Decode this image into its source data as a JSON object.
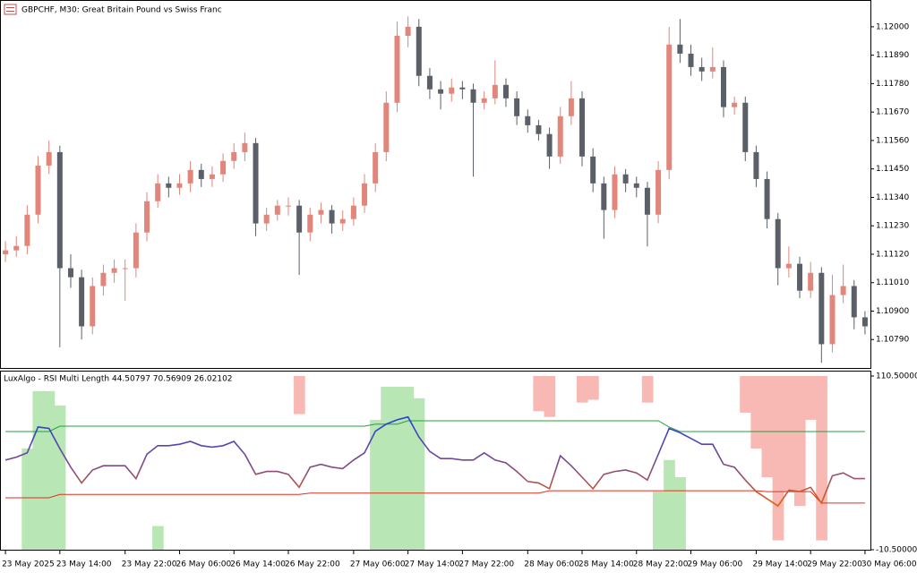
{
  "chart_data": [
    {
      "type": "candlestick",
      "title": "GBPCHF, M30:  Great Britain Pound vs Swiss Franc",
      "categories": [
        "23 May 2025",
        null,
        null,
        null,
        null,
        "23 May 14:00",
        null,
        null,
        null,
        null,
        null,
        "23 May 22:00",
        null,
        null,
        null,
        null,
        "26 May 06:00",
        null,
        null,
        null,
        null,
        "26 May 14:00",
        null,
        null,
        null,
        null,
        "26 May 22:00",
        null,
        null,
        null,
        null,
        null,
        "27 May 06:00",
        null,
        null,
        null,
        null,
        "27 May 14:00",
        null,
        null,
        null,
        null,
        "27 May 22:00",
        null,
        null,
        null,
        null,
        null,
        "28 May 06:00",
        null,
        null,
        null,
        null,
        "28 May 14:00",
        null,
        null,
        null,
        null,
        "28 May 22:00",
        null,
        null,
        null,
        null,
        "29 May 06:00",
        null,
        null,
        null,
        null,
        null,
        "29 May 14:00",
        null,
        null,
        null,
        null,
        "29 May 22:00",
        null,
        null,
        null,
        null,
        "30 May 06:00"
      ],
      "open": [
        1.1112,
        1.11135,
        1.11152,
        1.11273,
        1.11463,
        1.11515,
        1.11066,
        1.11031,
        1.10841,
        1.10997,
        1.11048,
        1.11066,
        1.11066,
        1.11204,
        1.11325,
        1.11394,
        1.11377,
        1.11394,
        1.11446,
        1.11411,
        1.11429,
        1.11481,
        1.11515,
        1.1155,
        1.11239,
        1.11273,
        1.11308,
        1.11308,
        1.11204,
        1.11273,
        1.11291,
        1.11239,
        1.11256,
        1.11308,
        1.11394,
        1.11515,
        1.11706,
        1.11965,
        1.12,
        1.1181,
        1.11758,
        1.11741,
        1.11765,
        1.11758,
        1.11706,
        1.11723,
        1.11775,
        1.11723,
        1.11654,
        1.11619,
        1.11585,
        1.11498,
        1.11654,
        1.11723,
        1.11498,
        1.11394,
        1.11291,
        1.11429,
        1.11394,
        1.11377,
        1.11273,
        1.11446,
        1.11931,
        1.11896,
        1.11844,
        1.11827,
        1.11844,
        1.11689,
        1.11706,
        1.11515,
        1.11411,
        1.11256,
        1.11066,
        1.11083,
        1.10979,
        1.11048,
        1.10772,
        1.10962,
        1.10997,
        1.10876
      ],
      "high": [
        1.1117,
        1.1119,
        1.1131,
        1.115,
        1.1156,
        1.1154,
        1.1112,
        1.1106,
        1.1103,
        1.1108,
        1.111,
        1.111,
        1.1124,
        1.1136,
        1.1143,
        1.1142,
        1.1143,
        1.1148,
        1.1147,
        1.1146,
        1.1151,
        1.1155,
        1.1159,
        1.1157,
        1.113,
        1.1133,
        1.1134,
        1.1133,
        1.113,
        1.1132,
        1.1131,
        1.1129,
        1.1134,
        1.1143,
        1.1155,
        1.1175,
        1.1202,
        1.1204,
        1.1203,
        1.1184,
        1.1179,
        1.118,
        1.1179,
        1.1178,
        1.1175,
        1.1187,
        1.118,
        1.1175,
        1.1168,
        1.1164,
        1.1161,
        1.1169,
        1.1179,
        1.1175,
        1.1153,
        1.1142,
        1.1146,
        1.1145,
        1.1142,
        1.114,
        1.1148,
        1.12,
        1.1203,
        1.1193,
        1.1188,
        1.1192,
        1.1187,
        1.1173,
        1.1173,
        1.1154,
        1.1144,
        1.1128,
        1.1115,
        1.1111,
        1.1109,
        1.1107,
        1.1104,
        1.1108,
        1.1102,
        1.109
      ],
      "low": [
        1.1109,
        1.1111,
        1.1112,
        1.1124,
        1.1143,
        1.1076,
        1.1099,
        1.1079,
        1.1081,
        1.1096,
        1.1101,
        1.1094,
        1.1103,
        1.1117,
        1.113,
        1.1134,
        1.1135,
        1.1136,
        1.1138,
        1.1138,
        1.114,
        1.1145,
        1.1148,
        1.1119,
        1.1121,
        1.1125,
        1.1127,
        1.1104,
        1.1117,
        1.1124,
        1.112,
        1.1121,
        1.1123,
        1.1128,
        1.1136,
        1.1148,
        1.1167,
        1.1192,
        1.1177,
        1.1172,
        1.1168,
        1.1171,
        1.1172,
        1.1142,
        1.1168,
        1.117,
        1.1169,
        1.1162,
        1.1159,
        1.1156,
        1.1145,
        1.1147,
        1.1162,
        1.1146,
        1.1136,
        1.1118,
        1.1126,
        1.1136,
        1.1134,
        1.1115,
        1.1124,
        1.1141,
        1.1186,
        1.1181,
        1.1179,
        1.118,
        1.1165,
        1.1166,
        1.1148,
        1.1138,
        1.1122,
        1.11,
        1.1103,
        1.1095,
        1.1095,
        1.107,
        1.1074,
        1.1093,
        1.1083,
        1.1081
      ],
      "close": [
        1.11135,
        1.11152,
        1.11273,
        1.11463,
        1.11515,
        1.11066,
        1.11031,
        1.10841,
        1.10997,
        1.11048,
        1.11066,
        1.11066,
        1.11204,
        1.11325,
        1.11394,
        1.11377,
        1.11394,
        1.11446,
        1.11411,
        1.11429,
        1.11481,
        1.11515,
        1.1155,
        1.11239,
        1.11273,
        1.11308,
        1.11308,
        1.11204,
        1.11273,
        1.11291,
        1.11239,
        1.11256,
        1.11308,
        1.11394,
        1.11515,
        1.11706,
        1.11965,
        1.12,
        1.1181,
        1.11758,
        1.11741,
        1.11765,
        1.11758,
        1.11706,
        1.11723,
        1.11775,
        1.11723,
        1.11654,
        1.11619,
        1.11585,
        1.11498,
        1.11654,
        1.11723,
        1.11498,
        1.11394,
        1.11291,
        1.11429,
        1.11394,
        1.11377,
        1.11273,
        1.11446,
        1.11931,
        1.11896,
        1.11844,
        1.11827,
        1.11844,
        1.11689,
        1.11706,
        1.11515,
        1.11411,
        1.11256,
        1.11066,
        1.11083,
        1.10979,
        1.11048,
        1.10772,
        1.10962,
        1.10997,
        1.10876,
        1.10841
      ],
      "up_color": "#e2857a",
      "down_color": "#5b6068",
      "ylim": [
        1.1068,
        1.121
      ],
      "yticks": [
        {
          "value": 1.12,
          "label": "1.12000"
        },
        {
          "value": 1.1189,
          "label": "1.11890"
        },
        {
          "value": 1.1178,
          "label": "1.11780"
        },
        {
          "value": 1.1167,
          "label": "1.11670"
        },
        {
          "value": 1.1156,
          "label": "1.11560"
        },
        {
          "value": 1.1145,
          "label": "1.11450"
        },
        {
          "value": 1.1134,
          "label": "1.11340"
        },
        {
          "value": 1.1123,
          "label": "1.11230"
        },
        {
          "value": 1.1112,
          "label": "1.11120"
        },
        {
          "value": 1.1101,
          "label": "1.11010"
        },
        {
          "value": 1.109,
          "label": "1.10900"
        },
        {
          "value": 1.1079,
          "label": "1.10790"
        }
      ]
    },
    {
      "type": "indicator",
      "title": "LuxAlgo - RSI Multi Length 44.50797 70.56909 26.02102",
      "rsi": [
        52,
        54,
        57,
        75,
        74,
        60,
        47,
        36,
        45,
        48,
        48,
        48,
        39,
        56,
        62,
        62,
        63,
        65,
        62,
        61,
        62,
        65,
        56,
        42,
        44,
        44,
        42,
        33,
        47,
        49,
        47,
        46,
        52,
        57,
        72,
        77,
        80,
        82,
        68,
        58,
        53,
        53,
        52,
        52,
        57,
        52,
        50,
        44,
        37,
        36,
        32,
        55,
        48,
        40,
        32,
        42,
        44,
        45,
        43,
        38,
        56,
        74,
        71,
        67,
        63,
        63,
        49,
        47,
        38,
        30,
        25,
        20,
        31,
        30,
        33,
        22,
        41,
        43,
        39,
        39
      ],
      "upper": [
        71.8,
        71.8,
        71.8,
        71.8,
        71.8,
        75.6,
        75.6,
        75.6,
        75.6,
        75.6,
        75.6,
        75.6,
        75.6,
        75.6,
        75.6,
        75.6,
        75.6,
        75.6,
        75.6,
        75.6,
        75.6,
        75.6,
        75.6,
        75.6,
        75.6,
        75.6,
        75.6,
        75.6,
        75.6,
        75.6,
        75.6,
        75.6,
        75.6,
        75.6,
        77,
        77,
        77,
        79.3,
        79.3,
        79.3,
        79.3,
        79.3,
        79.3,
        79.3,
        79.3,
        79.3,
        79.3,
        79.3,
        79.3,
        79.3,
        79.3,
        79.3,
        79.3,
        79.3,
        79.3,
        79.3,
        79.3,
        79.3,
        79.3,
        79.3,
        79.3,
        75,
        71.8,
        71.8,
        71.8,
        71.8,
        71.8,
        71.8,
        71.8,
        71.8,
        71.8,
        71.8,
        71.8,
        71.8,
        71.8,
        71.8,
        71.8,
        71.8,
        71.8,
        71.8
      ],
      "lower": [
        25.7,
        25.7,
        25.7,
        25.7,
        25.7,
        28,
        28,
        28,
        28,
        28,
        28,
        28,
        28,
        28,
        28,
        28,
        28,
        28,
        28,
        28,
        28,
        28,
        28,
        28,
        28,
        28,
        28,
        28,
        29,
        29,
        29,
        29,
        29,
        29,
        29,
        29,
        29,
        29,
        29,
        29,
        29,
        29,
        29,
        29,
        29,
        29,
        29,
        29,
        29,
        29,
        30.6,
        30.6,
        30.6,
        30.6,
        30.6,
        30.6,
        30.6,
        30.6,
        30.6,
        30.6,
        30.6,
        30.6,
        30.6,
        30.6,
        30.6,
        30.6,
        30.6,
        30.6,
        30.6,
        30.6,
        30,
        30,
        30,
        30,
        30,
        22,
        22,
        22,
        22,
        22
      ],
      "bull_fill": [
        null,
        null,
        60,
        100,
        100,
        90,
        null,
        null,
        null,
        null,
        null,
        null,
        null,
        null,
        6,
        null,
        null,
        null,
        null,
        null,
        null,
        null,
        null,
        null,
        null,
        null,
        null,
        null,
        null,
        null,
        null,
        null,
        null,
        null,
        80,
        103,
        103,
        103,
        95,
        null,
        null,
        null,
        null,
        null,
        null,
        null,
        null,
        null,
        null,
        null,
        null,
        null,
        null,
        null,
        null,
        null,
        null,
        null,
        null,
        null,
        30,
        52,
        40,
        null,
        null,
        null,
        null,
        null,
        null,
        null,
        null,
        null,
        null,
        null,
        null,
        null,
        null,
        null,
        null,
        null
      ],
      "bear_fill": [
        null,
        null,
        null,
        null,
        null,
        null,
        null,
        null,
        null,
        null,
        null,
        null,
        null,
        null,
        null,
        null,
        null,
        null,
        null,
        null,
        null,
        null,
        null,
        null,
        null,
        null,
        null,
        84,
        null,
        null,
        null,
        null,
        null,
        null,
        null,
        null,
        null,
        null,
        null,
        null,
        null,
        null,
        null,
        null,
        null,
        null,
        null,
        null,
        null,
        86,
        82,
        null,
        null,
        92,
        94,
        null,
        null,
        null,
        null,
        92,
        null,
        null,
        null,
        null,
        null,
        null,
        null,
        null,
        85,
        60,
        40,
        -4,
        30,
        20,
        80,
        -4,
        null,
        null,
        null,
        null
      ],
      "rsi_colors": [
        "#2a3fd8",
        "#7a4a8e",
        "#e8600c"
      ],
      "upper_color": "#22a03a",
      "lower_color": "#e0301c",
      "bull_color": "#b8e6b4",
      "bear_color": "#f8b8b4",
      "ylim": [
        -10.5,
        110.5
      ],
      "yticks": [
        {
          "value": 110.5,
          "label": "110.50000"
        },
        {
          "value": -10.5,
          "label": "-10.50000"
        }
      ]
    }
  ]
}
